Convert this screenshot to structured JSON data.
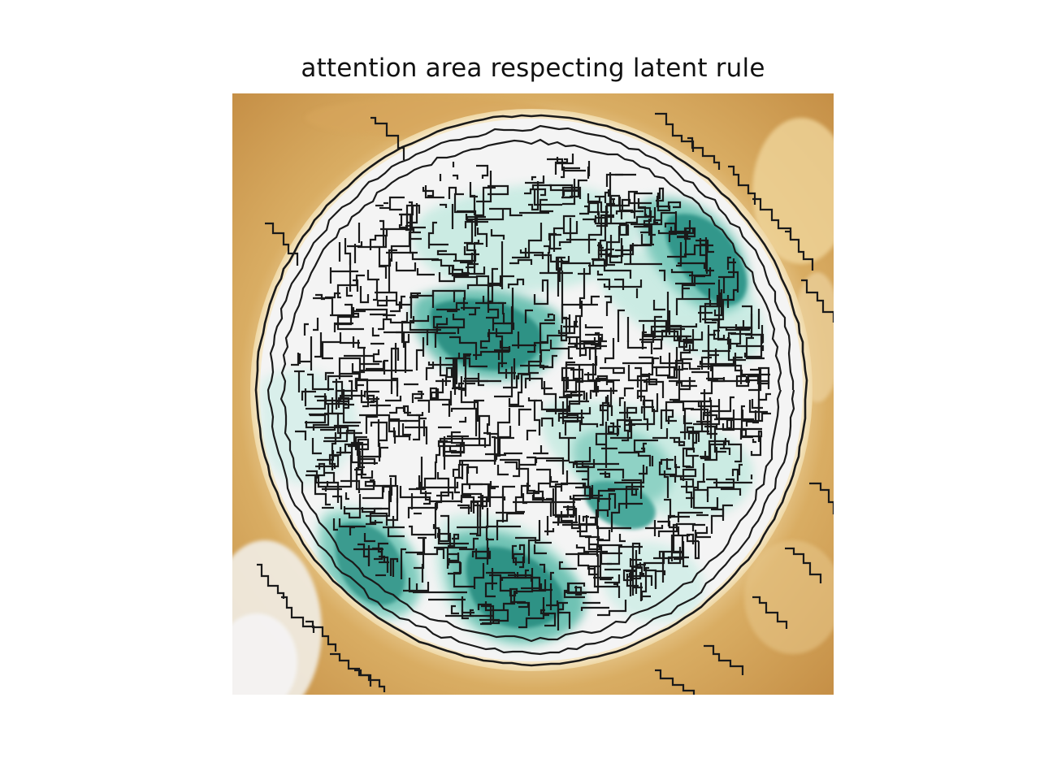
{
  "figure": {
    "title": "attention area respecting latent rule"
  },
  "image_colors": {
    "outer_background": "#c9944a",
    "outer_background_light": "#e8c98e",
    "dish_fill": "#f4f4f4",
    "attention_light": "#c9ebe3",
    "attention_mid": "#7fcbbd",
    "attention_strong": "#33978b",
    "contour_line": "#1a1a1a"
  }
}
